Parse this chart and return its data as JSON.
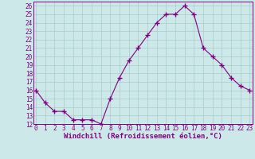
{
  "x": [
    0,
    1,
    2,
    3,
    4,
    5,
    6,
    7,
    8,
    9,
    10,
    11,
    12,
    13,
    14,
    15,
    16,
    17,
    18,
    19,
    20,
    21,
    22,
    23
  ],
  "y": [
    16,
    14.5,
    13.5,
    13.5,
    12.5,
    12.5,
    12.5,
    12,
    15,
    17.5,
    19.5,
    21,
    22.5,
    24,
    25,
    25,
    26,
    25,
    21,
    20,
    19,
    17.5,
    16.5,
    16
  ],
  "line_color": "#800080",
  "marker": "+",
  "marker_size": 4,
  "bg_color": "#cce8e8",
  "grid_color": "#aacccc",
  "xlabel": "Windchill (Refroidissement éolien,°C)",
  "xlabel_fontsize": 6.5,
  "tick_fontsize": 5.5,
  "ylim": [
    12,
    26.5
  ],
  "yticks": [
    12,
    13,
    14,
    15,
    16,
    17,
    18,
    19,
    20,
    21,
    22,
    23,
    24,
    25,
    26
  ],
  "xticks": [
    0,
    1,
    2,
    3,
    4,
    5,
    6,
    7,
    8,
    9,
    10,
    11,
    12,
    13,
    14,
    15,
    16,
    17,
    18,
    19,
    20,
    21,
    22,
    23
  ],
  "xlim": [
    -0.3,
    23.3
  ]
}
